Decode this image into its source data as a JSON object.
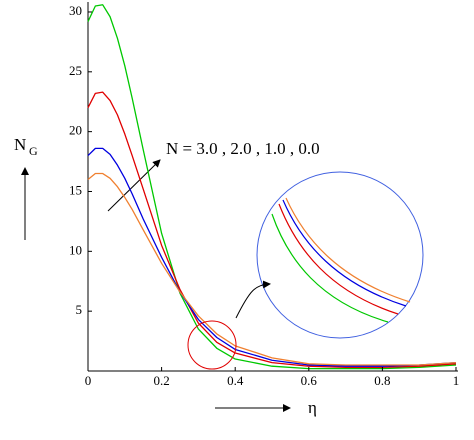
{
  "chart_data": {
    "type": "line",
    "y_label": "N",
    "y_label_subscript": "G",
    "x_label": "η",
    "annotation": "N = 3.0 , 2.0 , 1.0 , 0.0",
    "x": [
      0,
      0.02,
      0.04,
      0.06,
      0.08,
      0.1,
      0.12,
      0.15,
      0.2,
      0.25,
      0.3,
      0.35,
      0.4,
      0.5,
      0.6,
      0.7,
      0.8,
      0.9,
      1.0
    ],
    "series": [
      {
        "color": "#00c800",
        "values": [
          29.2,
          30.5,
          30.6,
          29.6,
          27.8,
          25.5,
          22.8,
          18.5,
          11.5,
          6.5,
          3.5,
          1.9,
          1.0,
          0.4,
          0.2,
          0.2,
          0.2,
          0.3,
          0.5
        ]
      },
      {
        "color": "#e00000",
        "values": [
          22,
          23.2,
          23.3,
          22.6,
          21.4,
          19.8,
          18.0,
          15.2,
          10.5,
          6.8,
          4.0,
          2.4,
          1.5,
          0.7,
          0.4,
          0.3,
          0.3,
          0.4,
          0.6
        ]
      },
      {
        "color": "#0000e0",
        "values": [
          18,
          18.6,
          18.6,
          18.1,
          17.2,
          16.1,
          14.8,
          12.7,
          9.5,
          6.6,
          4.3,
          2.8,
          1.8,
          0.9,
          0.5,
          0.4,
          0.4,
          0.5,
          0.7
        ]
      },
      {
        "color": "#f08030",
        "values": [
          16,
          16.5,
          16.5,
          16.1,
          15.4,
          14.5,
          13.5,
          11.8,
          9.0,
          6.6,
          4.6,
          3.1,
          2.1,
          1.1,
          0.6,
          0.5,
          0.5,
          0.5,
          0.7
        ]
      }
    ],
    "xlim": [
      0,
      1
    ],
    "ylim": [
      0,
      31
    ],
    "xticks": [
      0,
      0.2,
      0.4,
      0.6,
      0.8,
      1
    ],
    "yticks": [
      5,
      10,
      15,
      20,
      25,
      30
    ]
  }
}
